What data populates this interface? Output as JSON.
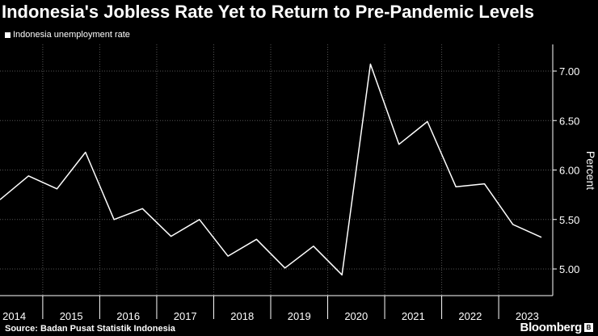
{
  "chart_data": {
    "type": "line",
    "title": "Indonesia's Jobless Rate Yet to Return to Pre-Pandemic Levels",
    "legend": [
      "Indonesia unemployment rate"
    ],
    "ylabel": "Percent",
    "xlabel": "",
    "ylim": [
      4.75,
      7.35
    ],
    "yticks": [
      "5.00",
      "5.50",
      "6.00",
      "6.50",
      "7.00"
    ],
    "ytick_values": [
      5.0,
      5.5,
      6.0,
      6.5,
      7.0
    ],
    "categories": [
      "2014",
      "2015",
      "2016",
      "2017",
      "2018",
      "2019",
      "2020",
      "2021",
      "2022",
      "2023"
    ],
    "series": [
      {
        "name": "Indonesia unemployment rate",
        "x": [
          2014.0,
          2014.5,
          2015.0,
          2015.5,
          2016.0,
          2016.5,
          2017.0,
          2017.5,
          2018.0,
          2018.5,
          2019.0,
          2019.5,
          2020.0,
          2020.5,
          2021.0,
          2021.5,
          2022.0,
          2022.5,
          2023.0,
          2023.5
        ],
        "values": [
          5.7,
          5.94,
          5.81,
          6.18,
          5.5,
          5.61,
          5.33,
          5.5,
          5.13,
          5.3,
          5.01,
          5.23,
          4.94,
          7.07,
          6.26,
          6.49,
          5.83,
          5.86,
          5.45,
          5.32
        ]
      }
    ],
    "grid": true,
    "colors": {
      "background": "#000000",
      "line": "#ffffff",
      "grid": "#555555",
      "text": "#ffffff"
    }
  },
  "footer": {
    "source": "Source: Badan Pusat Statistik Indonesia",
    "brand": "Bloomberg"
  }
}
